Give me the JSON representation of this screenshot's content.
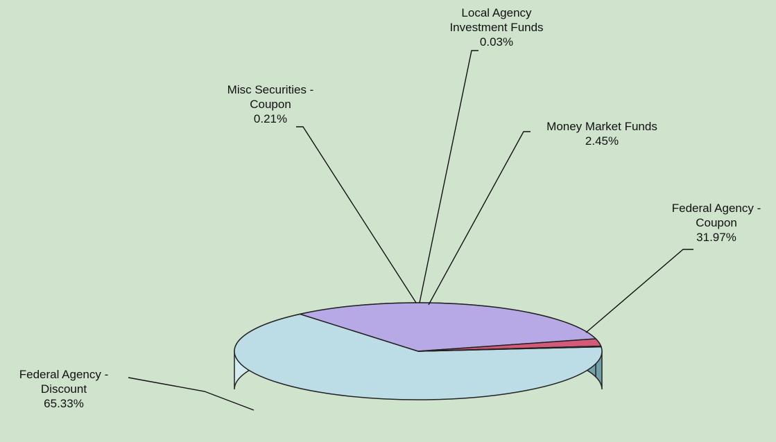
{
  "chart_data": {
    "type": "pie",
    "style": "3d",
    "slices": [
      {
        "label_lines": [
          "Federal Agency -",
          "Discount"
        ],
        "pct_label": "65.33%",
        "value": 65.33,
        "color": "#bcdde5"
      },
      {
        "label_lines": [
          "Federal Agency -",
          "Coupon"
        ],
        "pct_label": "31.97%",
        "value": 31.97,
        "color": "#b7a8e6"
      },
      {
        "label_lines": [
          "Money Market Funds"
        ],
        "pct_label": "2.45%",
        "value": 2.45,
        "color": "#d45a79"
      },
      {
        "label_lines": [
          "Local Agency",
          "Investment Funds"
        ],
        "pct_label": "0.03%",
        "value": 0.03,
        "color": "#bcdde5"
      },
      {
        "label_lines": [
          "Misc Securities -",
          "Coupon"
        ],
        "pct_label": "0.21%",
        "value": 0.21,
        "color": "#e8e28a"
      }
    ]
  }
}
